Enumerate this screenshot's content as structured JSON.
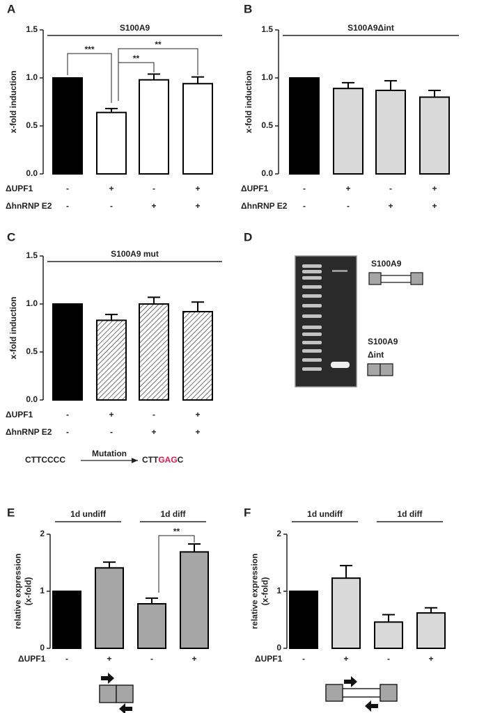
{
  "chart_data": [
    {
      "type": "bar",
      "panel": "A",
      "title": "S100A9",
      "ylabel": [
        "x-fold induction"
      ],
      "ylim": [
        0,
        1.5
      ],
      "yticks": [
        {
          "value": 0,
          "label": "0.0"
        },
        0.5,
        {
          "value": 1,
          "label": "1.0"
        },
        1.5
      ],
      "values": [
        1.0,
        0.64,
        0.98,
        0.94
      ],
      "errors": [
        null,
        0.04,
        0.06,
        0.07
      ],
      "colors": [
        "#000000",
        "#ffffff",
        "#ffffff",
        "#ffffff"
      ],
      "hatch": [
        false,
        false,
        false,
        false
      ],
      "conditions": [
        {
          "name": "ΔUPF1",
          "marks": [
            "-",
            "+",
            "-",
            "+"
          ]
        },
        {
          "name": "ΔhnRNP E2",
          "marks": [
            "-",
            "-",
            "+",
            "+"
          ]
        }
      ],
      "significance": [
        "***",
        "**",
        "**"
      ]
    },
    {
      "type": "bar",
      "panel": "B",
      "title": "S100A9Δint",
      "ylabel": [
        "x-fold induction"
      ],
      "ylim": [
        0,
        1.5
      ],
      "yticks": [
        {
          "value": 0,
          "label": "0.0"
        },
        0.5,
        {
          "value": 1,
          "label": "1.0"
        },
        1.5
      ],
      "values": [
        1.0,
        0.89,
        0.87,
        0.8
      ],
      "errors": [
        null,
        0.06,
        0.1,
        0.07
      ],
      "colors": [
        "#000000",
        "#d9d9d9",
        "#d9d9d9",
        "#d9d9d9"
      ],
      "hatch": [
        false,
        false,
        false,
        false
      ],
      "conditions": [
        {
          "name": "ΔUPF1",
          "marks": [
            "-",
            "+",
            "-",
            "+"
          ]
        },
        {
          "name": "ΔhnRNP E2",
          "marks": [
            "-",
            "-",
            "+",
            "+"
          ]
        }
      ]
    },
    {
      "type": "bar",
      "panel": "C",
      "title": "S100A9 mut",
      "ylabel": [
        "x-fold induction"
      ],
      "ylim": [
        0,
        1.5
      ],
      "yticks": [
        {
          "value": 0,
          "label": "0.0"
        },
        0.5,
        {
          "value": 1,
          "label": "1.0"
        },
        1.5
      ],
      "values": [
        1.0,
        0.83,
        1.0,
        0.92
      ],
      "errors": [
        null,
        0.06,
        0.07,
        0.1
      ],
      "colors": [
        "#000000",
        "#ffffff",
        "#ffffff",
        "#ffffff"
      ],
      "hatch": [
        false,
        true,
        true,
        true
      ],
      "conditions": [
        {
          "name": "ΔUPF1",
          "marks": [
            "-",
            "+",
            "-",
            "+"
          ]
        },
        {
          "name": "ΔhnRNP E2",
          "marks": [
            "-",
            "-",
            "+",
            "+"
          ]
        }
      ],
      "mutation": {
        "from": "CTTCCCC",
        "arrow_label": "Mutation",
        "to": [
          "CTT",
          "GAG",
          "C"
        ],
        "highlight_color": "#e8174a"
      }
    },
    {
      "type": "bar",
      "panel": "E",
      "ylabel": [
        "relative expression",
        "(x-fold)"
      ],
      "ylim": [
        0,
        2
      ],
      "yticks": [
        0,
        1,
        2
      ],
      "values": [
        1.0,
        1.41,
        0.78,
        1.69
      ],
      "errors": [
        null,
        0.1,
        0.1,
        0.14
      ],
      "colors": [
        "#000000",
        "#a6a6a6",
        "#a6a6a6",
        "#a6a6a6"
      ],
      "hatch": [
        false,
        false,
        false,
        false
      ],
      "groups": [
        "1d undiff",
        "1d diff"
      ],
      "conditions": [
        {
          "name": "ΔUPF1",
          "marks": [
            "-",
            "+",
            "-",
            "+"
          ]
        }
      ],
      "significance": [
        "**"
      ]
    },
    {
      "type": "bar",
      "panel": "F",
      "ylabel": [
        "relative expression",
        "(x-fold)"
      ],
      "ylim": [
        0,
        2
      ],
      "yticks": [
        0,
        1,
        2
      ],
      "values": [
        1.0,
        1.23,
        0.46,
        0.62
      ],
      "errors": [
        null,
        0.22,
        0.13,
        0.09
      ],
      "colors": [
        "#000000",
        "#d9d9d9",
        "#d9d9d9",
        "#d9d9d9"
      ],
      "hatch": [
        false,
        false,
        false,
        false
      ],
      "groups": [
        "1d undiff",
        "1d diff"
      ],
      "conditions": [
        {
          "name": "ΔUPF1",
          "marks": [
            "-",
            "+",
            "-",
            "+"
          ]
        }
      ]
    }
  ],
  "gel": {
    "panel": "D",
    "bands": [
      [
        "S100A9"
      ],
      [
        "S100A9",
        "Δint"
      ]
    ]
  }
}
